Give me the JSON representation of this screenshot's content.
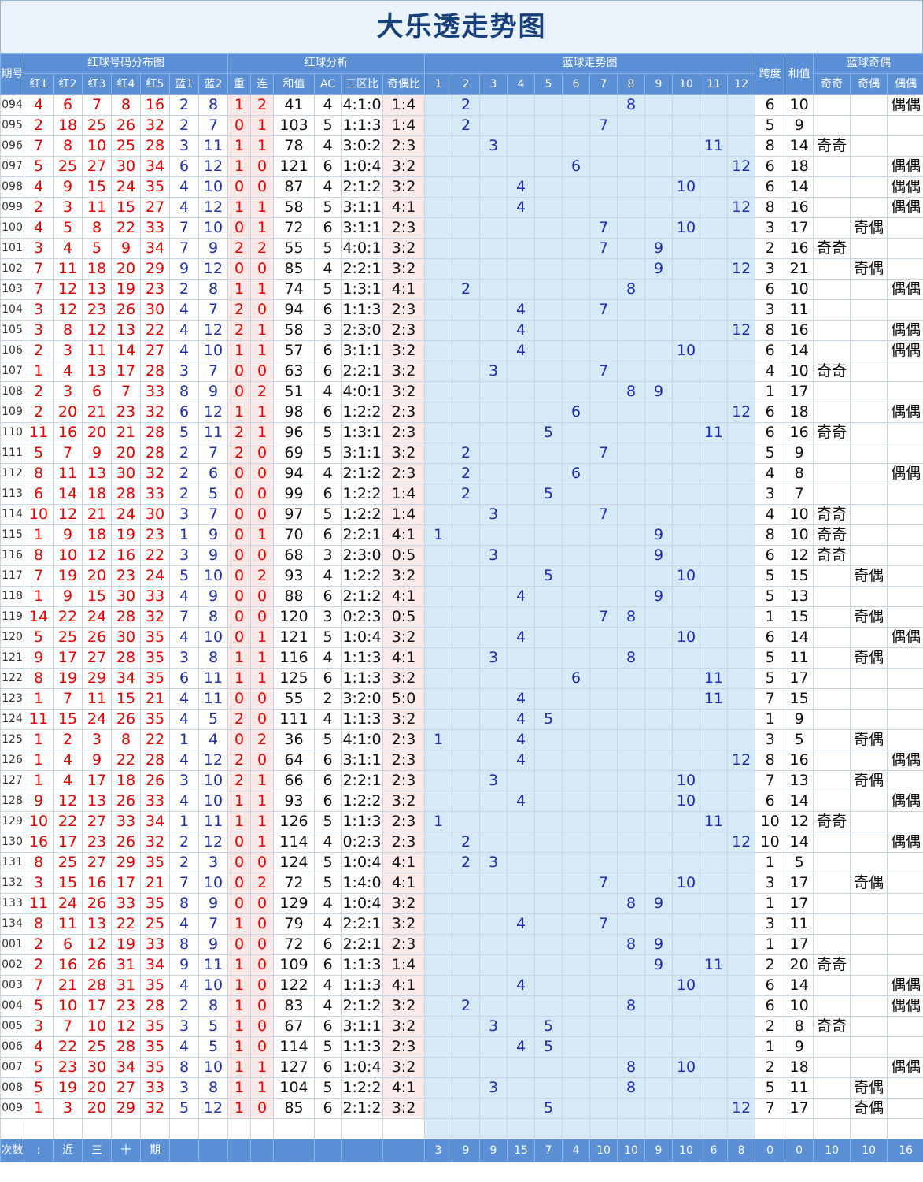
{
  "title": "大乐透走势图",
  "header": {
    "issue_label": "期号",
    "red_dist": "红球号码分布图",
    "red_analysis": "红球分析",
    "blue_trend": "蓝球走势图",
    "span_label": "跨度",
    "sum_label": "和值",
    "blue_oe": "蓝球奇偶",
    "sub_red": [
      "红1",
      "红2",
      "红3",
      "红4",
      "红5"
    ],
    "sub_blue": [
      "蓝1",
      "蓝2"
    ],
    "sub_analysis": [
      "重",
      "连",
      "和值",
      "AC",
      "三区比",
      "奇偶比"
    ],
    "blue_nums": [
      "1",
      "2",
      "3",
      "4",
      "5",
      "6",
      "7",
      "8",
      "9",
      "10",
      "11",
      "12"
    ],
    "oe_cols": [
      "奇奇",
      "奇偶",
      "偶偶"
    ]
  },
  "rows": [
    {
      "issue": "094",
      "red": [
        "4",
        "6",
        "7",
        "8",
        "16"
      ],
      "blue": [
        "2",
        "8"
      ],
      "rep": "1",
      "con": "2",
      "sum": "41",
      "ac": "4",
      "zone": "4:1:0",
      "oe": "1:4",
      "span": "6",
      "bsum": "10",
      "oeType": "偶偶"
    },
    {
      "issue": "095",
      "red": [
        "2",
        "18",
        "25",
        "26",
        "32"
      ],
      "blue": [
        "2",
        "7"
      ],
      "rep": "0",
      "con": "1",
      "sum": "103",
      "ac": "5",
      "zone": "1:1:3",
      "oe": "1:4",
      "span": "5",
      "bsum": "9",
      "oeType": ""
    },
    {
      "issue": "096",
      "red": [
        "7",
        "8",
        "10",
        "25",
        "28"
      ],
      "blue": [
        "3",
        "11"
      ],
      "rep": "1",
      "con": "1",
      "sum": "78",
      "ac": "4",
      "zone": "3:0:2",
      "oe": "2:3",
      "span": "8",
      "bsum": "14",
      "oeType": "奇奇"
    },
    {
      "issue": "097",
      "red": [
        "5",
        "25",
        "27",
        "30",
        "34"
      ],
      "blue": [
        "6",
        "12"
      ],
      "rep": "1",
      "con": "0",
      "sum": "121",
      "ac": "6",
      "zone": "1:0:4",
      "oe": "3:2",
      "span": "6",
      "bsum": "18",
      "oeType": "偶偶"
    },
    {
      "issue": "098",
      "red": [
        "4",
        "9",
        "15",
        "24",
        "35"
      ],
      "blue": [
        "4",
        "10"
      ],
      "rep": "0",
      "con": "0",
      "sum": "87",
      "ac": "4",
      "zone": "2:1:2",
      "oe": "3:2",
      "span": "6",
      "bsum": "14",
      "oeType": "偶偶"
    },
    {
      "issue": "099",
      "red": [
        "2",
        "3",
        "11",
        "15",
        "27"
      ],
      "blue": [
        "4",
        "12"
      ],
      "rep": "1",
      "con": "1",
      "sum": "58",
      "ac": "5",
      "zone": "3:1:1",
      "oe": "4:1",
      "span": "8",
      "bsum": "16",
      "oeType": "偶偶"
    },
    {
      "issue": "100",
      "red": [
        "4",
        "5",
        "8",
        "22",
        "33"
      ],
      "blue": [
        "7",
        "10"
      ],
      "rep": "0",
      "con": "1",
      "sum": "72",
      "ac": "6",
      "zone": "3:1:1",
      "oe": "2:3",
      "span": "3",
      "bsum": "17",
      "oeType": "奇偶"
    },
    {
      "issue": "101",
      "red": [
        "3",
        "4",
        "5",
        "9",
        "34"
      ],
      "blue": [
        "7",
        "9"
      ],
      "rep": "2",
      "con": "2",
      "sum": "55",
      "ac": "5",
      "zone": "4:0:1",
      "oe": "3:2",
      "span": "2",
      "bsum": "16",
      "oeType": "奇奇"
    },
    {
      "issue": "102",
      "red": [
        "7",
        "11",
        "18",
        "20",
        "29"
      ],
      "blue": [
        "9",
        "12"
      ],
      "rep": "0",
      "con": "0",
      "sum": "85",
      "ac": "4",
      "zone": "2:2:1",
      "oe": "3:2",
      "span": "3",
      "bsum": "21",
      "oeType": "奇偶"
    },
    {
      "issue": "103",
      "red": [
        "7",
        "12",
        "13",
        "19",
        "23"
      ],
      "blue": [
        "2",
        "8"
      ],
      "rep": "1",
      "con": "1",
      "sum": "74",
      "ac": "5",
      "zone": "1:3:1",
      "oe": "4:1",
      "span": "6",
      "bsum": "10",
      "oeType": "偶偶"
    },
    {
      "issue": "104",
      "red": [
        "3",
        "12",
        "23",
        "26",
        "30"
      ],
      "blue": [
        "4",
        "7"
      ],
      "rep": "2",
      "con": "0",
      "sum": "94",
      "ac": "6",
      "zone": "1:1:3",
      "oe": "2:3",
      "span": "3",
      "bsum": "11",
      "oeType": ""
    },
    {
      "issue": "105",
      "red": [
        "3",
        "8",
        "12",
        "13",
        "22"
      ],
      "blue": [
        "4",
        "12"
      ],
      "rep": "2",
      "con": "1",
      "sum": "58",
      "ac": "3",
      "zone": "2:3:0",
      "oe": "2:3",
      "span": "8",
      "bsum": "16",
      "oeType": "偶偶"
    },
    {
      "issue": "106",
      "red": [
        "2",
        "3",
        "11",
        "14",
        "27"
      ],
      "blue": [
        "4",
        "10"
      ],
      "rep": "1",
      "con": "1",
      "sum": "57",
      "ac": "6",
      "zone": "3:1:1",
      "oe": "3:2",
      "span": "6",
      "bsum": "14",
      "oeType": "偶偶"
    },
    {
      "issue": "107",
      "red": [
        "1",
        "4",
        "13",
        "17",
        "28"
      ],
      "blue": [
        "3",
        "7"
      ],
      "rep": "0",
      "con": "0",
      "sum": "63",
      "ac": "6",
      "zone": "2:2:1",
      "oe": "3:2",
      "span": "4",
      "bsum": "10",
      "oeType": "奇奇"
    },
    {
      "issue": "108",
      "red": [
        "2",
        "3",
        "6",
        "7",
        "33"
      ],
      "blue": [
        "8",
        "9"
      ],
      "rep": "0",
      "con": "2",
      "sum": "51",
      "ac": "4",
      "zone": "4:0:1",
      "oe": "3:2",
      "span": "1",
      "bsum": "17",
      "oeType": ""
    },
    {
      "issue": "109",
      "red": [
        "2",
        "20",
        "21",
        "23",
        "32"
      ],
      "blue": [
        "6",
        "12"
      ],
      "rep": "1",
      "con": "1",
      "sum": "98",
      "ac": "6",
      "zone": "1:2:2",
      "oe": "2:3",
      "span": "6",
      "bsum": "18",
      "oeType": "偶偶"
    },
    {
      "issue": "110",
      "red": [
        "11",
        "16",
        "20",
        "21",
        "28"
      ],
      "blue": [
        "5",
        "11"
      ],
      "rep": "2",
      "con": "1",
      "sum": "96",
      "ac": "5",
      "zone": "1:3:1",
      "oe": "2:3",
      "span": "6",
      "bsum": "16",
      "oeType": "奇奇"
    },
    {
      "issue": "111",
      "red": [
        "5",
        "7",
        "9",
        "20",
        "28"
      ],
      "blue": [
        "2",
        "7"
      ],
      "rep": "2",
      "con": "0",
      "sum": "69",
      "ac": "5",
      "zone": "3:1:1",
      "oe": "3:2",
      "span": "5",
      "bsum": "9",
      "oeType": ""
    },
    {
      "issue": "112",
      "red": [
        "8",
        "11",
        "13",
        "30",
        "32"
      ],
      "blue": [
        "2",
        "6"
      ],
      "rep": "0",
      "con": "0",
      "sum": "94",
      "ac": "4",
      "zone": "2:1:2",
      "oe": "2:3",
      "span": "4",
      "bsum": "8",
      "oeType": "偶偶"
    },
    {
      "issue": "113",
      "red": [
        "6",
        "14",
        "18",
        "28",
        "33"
      ],
      "blue": [
        "2",
        "5"
      ],
      "rep": "0",
      "con": "0",
      "sum": "99",
      "ac": "6",
      "zone": "1:2:2",
      "oe": "1:4",
      "span": "3",
      "bsum": "7",
      "oeType": ""
    },
    {
      "issue": "114",
      "red": [
        "10",
        "12",
        "21",
        "24",
        "30"
      ],
      "blue": [
        "3",
        "7"
      ],
      "rep": "0",
      "con": "0",
      "sum": "97",
      "ac": "5",
      "zone": "1:2:2",
      "oe": "1:4",
      "span": "4",
      "bsum": "10",
      "oeType": "奇奇"
    },
    {
      "issue": "115",
      "red": [
        "1",
        "9",
        "18",
        "19",
        "23"
      ],
      "blue": [
        "1",
        "9"
      ],
      "rep": "0",
      "con": "1",
      "sum": "70",
      "ac": "6",
      "zone": "2:2:1",
      "oe": "4:1",
      "span": "8",
      "bsum": "10",
      "oeType": "奇奇"
    },
    {
      "issue": "116",
      "red": [
        "8",
        "10",
        "12",
        "16",
        "22"
      ],
      "blue": [
        "3",
        "9"
      ],
      "rep": "0",
      "con": "0",
      "sum": "68",
      "ac": "3",
      "zone": "2:3:0",
      "oe": "0:5",
      "span": "6",
      "bsum": "12",
      "oeType": "奇奇"
    },
    {
      "issue": "117",
      "red": [
        "7",
        "19",
        "20",
        "23",
        "24"
      ],
      "blue": [
        "5",
        "10"
      ],
      "rep": "0",
      "con": "2",
      "sum": "93",
      "ac": "4",
      "zone": "1:2:2",
      "oe": "3:2",
      "span": "5",
      "bsum": "15",
      "oeType": "奇偶"
    },
    {
      "issue": "118",
      "red": [
        "1",
        "9",
        "15",
        "30",
        "33"
      ],
      "blue": [
        "4",
        "9"
      ],
      "rep": "0",
      "con": "0",
      "sum": "88",
      "ac": "6",
      "zone": "2:1:2",
      "oe": "4:1",
      "span": "5",
      "bsum": "13",
      "oeType": ""
    },
    {
      "issue": "119",
      "red": [
        "14",
        "22",
        "24",
        "28",
        "32"
      ],
      "blue": [
        "7",
        "8"
      ],
      "rep": "0",
      "con": "0",
      "sum": "120",
      "ac": "3",
      "zone": "0:2:3",
      "oe": "0:5",
      "span": "1",
      "bsum": "15",
      "oeType": "奇偶"
    },
    {
      "issue": "120",
      "red": [
        "5",
        "25",
        "26",
        "30",
        "35"
      ],
      "blue": [
        "4",
        "10"
      ],
      "rep": "0",
      "con": "1",
      "sum": "121",
      "ac": "5",
      "zone": "1:0:4",
      "oe": "3:2",
      "span": "6",
      "bsum": "14",
      "oeType": "偶偶"
    },
    {
      "issue": "121",
      "red": [
        "9",
        "17",
        "27",
        "28",
        "35"
      ],
      "blue": [
        "3",
        "8"
      ],
      "rep": "1",
      "con": "1",
      "sum": "116",
      "ac": "4",
      "zone": "1:1:3",
      "oe": "4:1",
      "span": "5",
      "bsum": "11",
      "oeType": "奇偶"
    },
    {
      "issue": "122",
      "red": [
        "8",
        "19",
        "29",
        "34",
        "35"
      ],
      "blue": [
        "6",
        "11"
      ],
      "rep": "1",
      "con": "1",
      "sum": "125",
      "ac": "6",
      "zone": "1:1:3",
      "oe": "3:2",
      "span": "5",
      "bsum": "17",
      "oeType": ""
    },
    {
      "issue": "123",
      "red": [
        "1",
        "7",
        "11",
        "15",
        "21"
      ],
      "blue": [
        "4",
        "11"
      ],
      "rep": "0",
      "con": "0",
      "sum": "55",
      "ac": "2",
      "zone": "3:2:0",
      "oe": "5:0",
      "span": "7",
      "bsum": "15",
      "oeType": ""
    },
    {
      "issue": "124",
      "red": [
        "11",
        "15",
        "24",
        "26",
        "35"
      ],
      "blue": [
        "4",
        "5"
      ],
      "rep": "2",
      "con": "0",
      "sum": "111",
      "ac": "4",
      "zone": "1:1:3",
      "oe": "3:2",
      "span": "1",
      "bsum": "9",
      "oeType": ""
    },
    {
      "issue": "125",
      "red": [
        "1",
        "2",
        "3",
        "8",
        "22"
      ],
      "blue": [
        "1",
        "4"
      ],
      "rep": "0",
      "con": "2",
      "sum": "36",
      "ac": "5",
      "zone": "4:1:0",
      "oe": "2:3",
      "span": "3",
      "bsum": "5",
      "oeType": "奇偶"
    },
    {
      "issue": "126",
      "red": [
        "1",
        "4",
        "9",
        "22",
        "28"
      ],
      "blue": [
        "4",
        "12"
      ],
      "rep": "2",
      "con": "0",
      "sum": "64",
      "ac": "6",
      "zone": "3:1:1",
      "oe": "2:3",
      "span": "8",
      "bsum": "16",
      "oeType": "偶偶"
    },
    {
      "issue": "127",
      "red": [
        "1",
        "4",
        "17",
        "18",
        "26"
      ],
      "blue": [
        "3",
        "10"
      ],
      "rep": "2",
      "con": "1",
      "sum": "66",
      "ac": "6",
      "zone": "2:2:1",
      "oe": "2:3",
      "span": "7",
      "bsum": "13",
      "oeType": "奇偶"
    },
    {
      "issue": "128",
      "red": [
        "9",
        "12",
        "13",
        "26",
        "33"
      ],
      "blue": [
        "4",
        "10"
      ],
      "rep": "1",
      "con": "1",
      "sum": "93",
      "ac": "6",
      "zone": "1:2:2",
      "oe": "3:2",
      "span": "6",
      "bsum": "14",
      "oeType": "偶偶"
    },
    {
      "issue": "129",
      "red": [
        "10",
        "22",
        "27",
        "33",
        "34"
      ],
      "blue": [
        "1",
        "11"
      ],
      "rep": "1",
      "con": "1",
      "sum": "126",
      "ac": "5",
      "zone": "1:1:3",
      "oe": "2:3",
      "span": "10",
      "bsum": "12",
      "oeType": "奇奇"
    },
    {
      "issue": "130",
      "red": [
        "16",
        "17",
        "23",
        "26",
        "32"
      ],
      "blue": [
        "2",
        "12"
      ],
      "rep": "0",
      "con": "1",
      "sum": "114",
      "ac": "4",
      "zone": "0:2:3",
      "oe": "2:3",
      "span": "10",
      "bsum": "14",
      "oeType": "偶偶"
    },
    {
      "issue": "131",
      "red": [
        "8",
        "25",
        "27",
        "29",
        "35"
      ],
      "blue": [
        "2",
        "3"
      ],
      "rep": "0",
      "con": "0",
      "sum": "124",
      "ac": "5",
      "zone": "1:0:4",
      "oe": "4:1",
      "span": "1",
      "bsum": "5",
      "oeType": ""
    },
    {
      "issue": "132",
      "red": [
        "3",
        "15",
        "16",
        "17",
        "21"
      ],
      "blue": [
        "7",
        "10"
      ],
      "rep": "0",
      "con": "2",
      "sum": "72",
      "ac": "5",
      "zone": "1:4:0",
      "oe": "4:1",
      "span": "3",
      "bsum": "17",
      "oeType": "奇偶"
    },
    {
      "issue": "133",
      "red": [
        "11",
        "24",
        "26",
        "33",
        "35"
      ],
      "blue": [
        "8",
        "9"
      ],
      "rep": "0",
      "con": "0",
      "sum": "129",
      "ac": "4",
      "zone": "1:0:4",
      "oe": "3:2",
      "span": "1",
      "bsum": "17",
      "oeType": ""
    },
    {
      "issue": "134",
      "red": [
        "8",
        "11",
        "13",
        "22",
        "25"
      ],
      "blue": [
        "4",
        "7"
      ],
      "rep": "1",
      "con": "0",
      "sum": "79",
      "ac": "4",
      "zone": "2:2:1",
      "oe": "3:2",
      "span": "3",
      "bsum": "11",
      "oeType": ""
    },
    {
      "issue": "001",
      "red": [
        "2",
        "6",
        "12",
        "19",
        "33"
      ],
      "blue": [
        "8",
        "9"
      ],
      "rep": "0",
      "con": "0",
      "sum": "72",
      "ac": "6",
      "zone": "2:2:1",
      "oe": "2:3",
      "span": "1",
      "bsum": "17",
      "oeType": ""
    },
    {
      "issue": "002",
      "red": [
        "2",
        "16",
        "26",
        "31",
        "34"
      ],
      "blue": [
        "9",
        "11"
      ],
      "rep": "1",
      "con": "0",
      "sum": "109",
      "ac": "6",
      "zone": "1:1:3",
      "oe": "1:4",
      "span": "2",
      "bsum": "20",
      "oeType": "奇奇"
    },
    {
      "issue": "003",
      "red": [
        "7",
        "21",
        "28",
        "31",
        "35"
      ],
      "blue": [
        "4",
        "10"
      ],
      "rep": "1",
      "con": "0",
      "sum": "122",
      "ac": "4",
      "zone": "1:1:3",
      "oe": "4:1",
      "span": "6",
      "bsum": "14",
      "oeType": "偶偶"
    },
    {
      "issue": "004",
      "red": [
        "5",
        "10",
        "17",
        "23",
        "28"
      ],
      "blue": [
        "2",
        "8"
      ],
      "rep": "1",
      "con": "0",
      "sum": "83",
      "ac": "4",
      "zone": "2:1:2",
      "oe": "3:2",
      "span": "6",
      "bsum": "10",
      "oeType": "偶偶"
    },
    {
      "issue": "005",
      "red": [
        "3",
        "7",
        "10",
        "12",
        "35"
      ],
      "blue": [
        "3",
        "5"
      ],
      "rep": "1",
      "con": "0",
      "sum": "67",
      "ac": "6",
      "zone": "3:1:1",
      "oe": "3:2",
      "span": "2",
      "bsum": "8",
      "oeType": "奇奇"
    },
    {
      "issue": "006",
      "red": [
        "4",
        "22",
        "25",
        "28",
        "35"
      ],
      "blue": [
        "4",
        "5"
      ],
      "rep": "1",
      "con": "0",
      "sum": "114",
      "ac": "5",
      "zone": "1:1:3",
      "oe": "2:3",
      "span": "1",
      "bsum": "9",
      "oeType": ""
    },
    {
      "issue": "007",
      "red": [
        "5",
        "23",
        "30",
        "34",
        "35"
      ],
      "blue": [
        "8",
        "10"
      ],
      "rep": "1",
      "con": "1",
      "sum": "127",
      "ac": "6",
      "zone": "1:0:4",
      "oe": "3:2",
      "span": "2",
      "bsum": "18",
      "oeType": "偶偶"
    },
    {
      "issue": "008",
      "red": [
        "5",
        "19",
        "20",
        "27",
        "33"
      ],
      "blue": [
        "3",
        "8"
      ],
      "rep": "1",
      "con": "1",
      "sum": "104",
      "ac": "5",
      "zone": "1:2:2",
      "oe": "4:1",
      "span": "5",
      "bsum": "11",
      "oeType": "奇偶"
    },
    {
      "issue": "009",
      "red": [
        "1",
        "3",
        "20",
        "29",
        "32"
      ],
      "blue": [
        "5",
        "12"
      ],
      "rep": "1",
      "con": "0",
      "sum": "85",
      "ac": "6",
      "zone": "2:1:2",
      "oe": "3:2",
      "span": "7",
      "bsum": "17",
      "oeType": "奇偶"
    }
  ],
  "footer": {
    "label": "次数",
    "note": [
      ":",
      "近",
      "三",
      "十",
      "期"
    ],
    "blue_counts": [
      "3",
      "9",
      "9",
      "15",
      "7",
      "4",
      "10",
      "10",
      "9",
      "10",
      "6",
      "8"
    ],
    "span_count": "0",
    "sum_count": "0",
    "oe_counts": [
      "10",
      "10",
      "16"
    ]
  }
}
